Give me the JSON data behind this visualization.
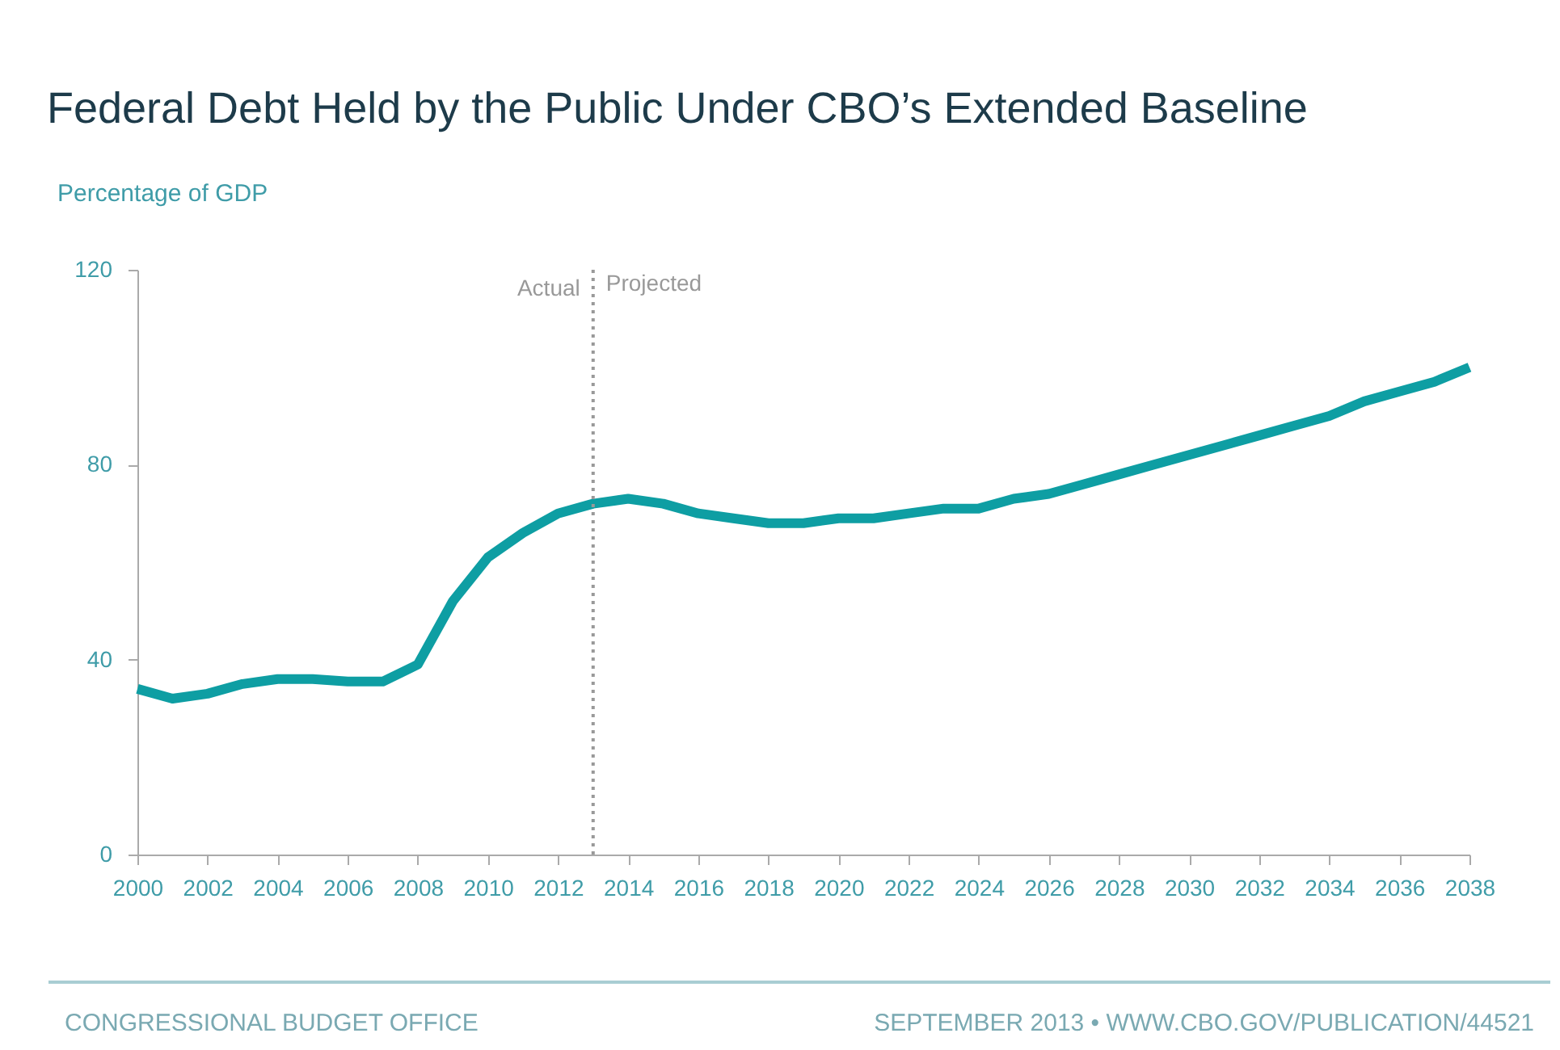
{
  "chart_data": {
    "type": "line",
    "title": "Federal Debt Held by the Public Under CBO’s Extended Baseline",
    "ylabel": "Percentage of GDP",
    "x": [
      2000,
      2001,
      2002,
      2003,
      2004,
      2005,
      2006,
      2007,
      2008,
      2009,
      2010,
      2011,
      2012,
      2013,
      2014,
      2015,
      2016,
      2017,
      2018,
      2019,
      2020,
      2021,
      2022,
      2023,
      2024,
      2025,
      2026,
      2027,
      2028,
      2029,
      2030,
      2031,
      2032,
      2033,
      2034,
      2035,
      2036,
      2037,
      2038
    ],
    "series": [
      {
        "color": "#0e9ea3",
        "values": [
          34,
          32,
          33,
          35,
          36,
          36,
          35.5,
          35.5,
          39,
          52,
          61,
          66,
          70,
          72,
          73,
          72,
          70,
          69,
          68,
          68,
          69,
          69,
          70,
          71,
          71,
          73,
          74,
          76,
          78,
          80,
          82,
          84,
          86,
          88,
          90,
          93,
          95,
          97,
          100
        ]
      }
    ],
    "xlim": [
      2000,
      2038
    ],
    "xticks": [
      2000,
      2002,
      2004,
      2006,
      2008,
      2010,
      2012,
      2014,
      2016,
      2018,
      2020,
      2022,
      2024,
      2026,
      2028,
      2030,
      2032,
      2034,
      2036,
      2038
    ],
    "ylim": [
      0,
      120
    ],
    "yticks": [
      0,
      40,
      80,
      120
    ],
    "grid": false,
    "marker": "none",
    "line_style": "solid",
    "ref_lines": [
      {
        "axis": "x",
        "value": 2013,
        "label": "Actual",
        "line_style": "dotted",
        "color": "#999999"
      }
    ],
    "annotations": [
      {
        "text": "Projected",
        "x": 2013,
        "y": 117
      },
      "CONGRESSIONAL BUDGET OFFICE",
      "SEPTEMBER 2013  •  WWW.CBO.GOV/PUBLICATION/44521"
    ]
  }
}
